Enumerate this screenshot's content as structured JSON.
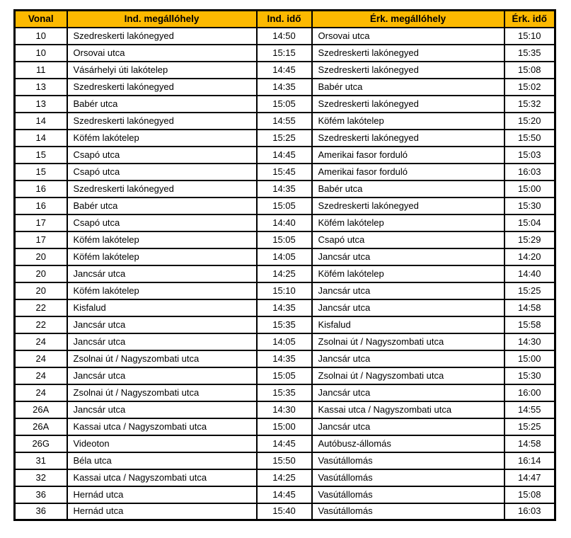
{
  "colors": {
    "header_bg": "#FCB900",
    "border": "#000000",
    "row_bg": "#FFFFFF",
    "text": "#000000"
  },
  "table": {
    "headers": [
      "Vonal",
      "Ind. megállóhely",
      "Ind. idő",
      "Érk. megállóhely",
      "Érk. idő"
    ],
    "column_keys": [
      "line",
      "departure-stop",
      "departure-time",
      "arrival-stop",
      "arrival-time"
    ],
    "rows": [
      [
        "10",
        "Szedreskerti lakónegyed",
        "14:50",
        "Orsovai utca",
        "15:10"
      ],
      [
        "10",
        "Orsovai utca",
        "15:15",
        "Szedreskerti lakónegyed",
        "15:35"
      ],
      [
        "11",
        "Vásárhelyi úti lakótelep",
        "14:45",
        "Szedreskerti lakónegyed",
        "15:08"
      ],
      [
        "13",
        "Szedreskerti lakónegyed",
        "14:35",
        "Babér utca",
        "15:02"
      ],
      [
        "13",
        "Babér utca",
        "15:05",
        "Szedreskerti lakónegyed",
        "15:32"
      ],
      [
        "14",
        "Szedreskerti lakónegyed",
        "14:55",
        "Köfém lakótelep",
        "15:20"
      ],
      [
        "14",
        "Köfém lakótelep",
        "15:25",
        "Szedreskerti lakónegyed",
        "15:50"
      ],
      [
        "15",
        "Csapó utca",
        "14:45",
        "Amerikai fasor forduló",
        "15:03"
      ],
      [
        "15",
        "Csapó utca",
        "15:45",
        "Amerikai fasor forduló",
        "16:03"
      ],
      [
        "16",
        "Szedreskerti lakónegyed",
        "14:35",
        "Babér utca",
        "15:00"
      ],
      [
        "16",
        "Babér utca",
        "15:05",
        "Szedreskerti lakónegyed",
        "15:30"
      ],
      [
        "17",
        "Csapó utca",
        "14:40",
        "Köfém lakótelep",
        "15:04"
      ],
      [
        "17",
        "Köfém lakótelep",
        "15:05",
        "Csapó utca",
        "15:29"
      ],
      [
        "20",
        "Köfém lakótelep",
        "14:05",
        "Jancsár utca",
        "14:20"
      ],
      [
        "20",
        "Jancsár utca",
        "14:25",
        "Köfém lakótelep",
        "14:40"
      ],
      [
        "20",
        "Köfém lakótelep",
        "15:10",
        "Jancsár utca",
        "15:25"
      ],
      [
        "22",
        "Kisfalud",
        "14:35",
        "Jancsár utca",
        "14:58"
      ],
      [
        "22",
        "Jancsár utca",
        "15:35",
        "Kisfalud",
        "15:58"
      ],
      [
        "24",
        "Jancsár utca",
        "14:05",
        "Zsolnai út / Nagyszombati utca",
        "14:30"
      ],
      [
        "24",
        "Zsolnai út / Nagyszombati utca",
        "14:35",
        "Jancsár utca",
        "15:00"
      ],
      [
        "24",
        "Jancsár utca",
        "15:05",
        "Zsolnai út / Nagyszombati utca",
        "15:30"
      ],
      [
        "24",
        "Zsolnai út / Nagyszombati utca",
        "15:35",
        "Jancsár utca",
        "16:00"
      ],
      [
        "26A",
        "Jancsár utca",
        "14:30",
        "Kassai utca / Nagyszombati utca",
        "14:55"
      ],
      [
        "26A",
        "Kassai utca / Nagyszombati utca",
        "15:00",
        "Jancsár utca",
        "15:25"
      ],
      [
        "26G",
        "Videoton",
        "14:45",
        "Autóbusz-állomás",
        "14:58"
      ],
      [
        "31",
        "Béla utca",
        "15:50",
        "Vasútállomás",
        "16:14"
      ],
      [
        "32",
        "Kassai utca / Nagyszombati utca",
        "14:25",
        "Vasútállomás",
        "14:47"
      ],
      [
        "36",
        "Hernád utca",
        "14:45",
        "Vasútállomás",
        "15:08"
      ],
      [
        "36",
        "Hernád utca",
        "15:40",
        "Vasútállomás",
        "16:03"
      ]
    ]
  },
  "chart_data": {
    "type": "table",
    "title": "",
    "columns": [
      "Vonal",
      "Ind. megállóhely",
      "Ind. idő",
      "Érk. megállóhely",
      "Érk. idő"
    ],
    "rows": [
      [
        "10",
        "Szedreskerti lakónegyed",
        "14:50",
        "Orsovai utca",
        "15:10"
      ],
      [
        "10",
        "Orsovai utca",
        "15:15",
        "Szedreskerti lakónegyed",
        "15:35"
      ],
      [
        "11",
        "Vásárhelyi úti lakótelep",
        "14:45",
        "Szedreskerti lakónegyed",
        "15:08"
      ],
      [
        "13",
        "Szedreskerti lakónegyed",
        "14:35",
        "Babér utca",
        "15:02"
      ],
      [
        "13",
        "Babér utca",
        "15:05",
        "Szedreskerti lakónegyed",
        "15:32"
      ],
      [
        "14",
        "Szedreskerti lakónegyed",
        "14:55",
        "Köfém lakótelep",
        "15:20"
      ],
      [
        "14",
        "Köfém lakótelep",
        "15:25",
        "Szedreskerti lakónegyed",
        "15:50"
      ],
      [
        "15",
        "Csapó utca",
        "14:45",
        "Amerikai fasor forduló",
        "15:03"
      ],
      [
        "15",
        "Csapó utca",
        "15:45",
        "Amerikai fasor forduló",
        "16:03"
      ],
      [
        "16",
        "Szedreskerti lakónegyed",
        "14:35",
        "Babér utca",
        "15:00"
      ],
      [
        "16",
        "Babér utca",
        "15:05",
        "Szedreskerti lakónegyed",
        "15:30"
      ],
      [
        "17",
        "Csapó utca",
        "14:40",
        "Köfém lakótelep",
        "15:04"
      ],
      [
        "17",
        "Köfém lakótelep",
        "15:05",
        "Csapó utca",
        "15:29"
      ],
      [
        "20",
        "Köfém lakótelep",
        "14:05",
        "Jancsár utca",
        "14:20"
      ],
      [
        "20",
        "Jancsár utca",
        "14:25",
        "Köfém lakótelep",
        "14:40"
      ],
      [
        "20",
        "Köfém lakótelep",
        "15:10",
        "Jancsár utca",
        "15:25"
      ],
      [
        "22",
        "Kisfalud",
        "14:35",
        "Jancsár utca",
        "14:58"
      ],
      [
        "22",
        "Jancsár utca",
        "15:35",
        "Kisfalud",
        "15:58"
      ],
      [
        "24",
        "Jancsár utca",
        "14:05",
        "Zsolnai út / Nagyszombati utca",
        "14:30"
      ],
      [
        "24",
        "Zsolnai út / Nagyszombati utca",
        "14:35",
        "Jancsár utca",
        "15:00"
      ],
      [
        "24",
        "Jancsár utca",
        "15:05",
        "Zsolnai út / Nagyszombati utca",
        "15:30"
      ],
      [
        "24",
        "Zsolnai út / Nagyszombati utca",
        "15:35",
        "Jancsár utca",
        "16:00"
      ],
      [
        "26A",
        "Jancsár utca",
        "14:30",
        "Kassai utca / Nagyszombati utca",
        "14:55"
      ],
      [
        "26A",
        "Kassai utca / Nagyszombati utca",
        "15:00",
        "Jancsár utca",
        "15:25"
      ],
      [
        "26G",
        "Videoton",
        "14:45",
        "Autóbusz-állomás",
        "14:58"
      ],
      [
        "31",
        "Béla utca",
        "15:50",
        "Vasútállomás",
        "16:14"
      ],
      [
        "32",
        "Kassai utca / Nagyszombati utca",
        "14:25",
        "Vasútállomás",
        "14:47"
      ],
      [
        "36",
        "Hernád utca",
        "14:45",
        "Vasútállomás",
        "15:08"
      ],
      [
        "36",
        "Hernád utca",
        "15:40",
        "Vasútállomás",
        "16:03"
      ]
    ]
  }
}
